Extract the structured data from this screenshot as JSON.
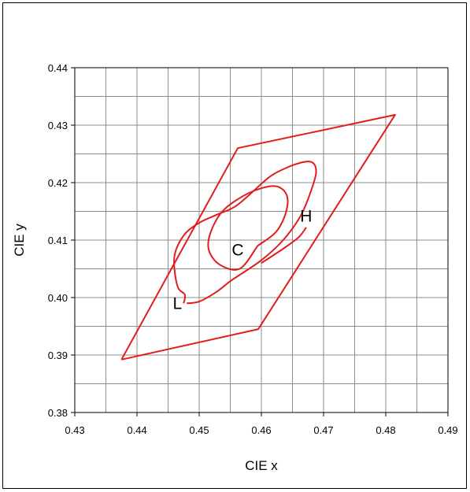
{
  "chart_data": {
    "type": "line",
    "title": "",
    "xlabel": "CIE x",
    "ylabel": "CIE y",
    "xlim": [
      0.43,
      0.49
    ],
    "ylim": [
      0.38,
      0.44
    ],
    "xticks": [
      "0.43",
      "0.44",
      "0.45",
      "0.46",
      "0.47",
      "0.48",
      "0.49"
    ],
    "yticks": [
      "0.38",
      "0.39",
      "0.40",
      "0.41",
      "0.42",
      "0.43",
      "0.44"
    ],
    "grid": true,
    "minor_grid_step": 0.005,
    "line_color": "#e31b1b",
    "series": [
      {
        "shape": "quadrilateral",
        "points": [
          [
            0.4375,
            0.3892
          ],
          [
            0.4562,
            0.426
          ],
          [
            0.4815,
            0.4318
          ],
          [
            0.4595,
            0.3945
          ],
          [
            0.4375,
            0.3892
          ]
        ]
      },
      {
        "shape": "ellipse",
        "center": [
          0.4579,
          0.4115
        ],
        "points": [
          [
            0.4594,
            0.409
          ],
          [
            0.4624,
            0.4115
          ],
          [
            0.464,
            0.415
          ],
          [
            0.464,
            0.418
          ],
          [
            0.462,
            0.4194
          ],
          [
            0.458,
            0.4182
          ],
          [
            0.454,
            0.4153
          ],
          [
            0.452,
            0.4118
          ],
          [
            0.4515,
            0.4085
          ],
          [
            0.4532,
            0.4058
          ],
          [
            0.4565,
            0.405
          ],
          [
            0.4594,
            0.409
          ]
        ]
      },
      {
        "shape": "spiral",
        "points": [
          [
            0.448,
            0.399
          ],
          [
            0.45,
            0.3993
          ],
          [
            0.4528,
            0.401
          ],
          [
            0.4552,
            0.403
          ],
          [
            0.46,
            0.4065
          ],
          [
            0.4635,
            0.41
          ],
          [
            0.4662,
            0.414
          ],
          [
            0.4678,
            0.418
          ],
          [
            0.4688,
            0.4218
          ],
          [
            0.468,
            0.4236
          ],
          [
            0.4655,
            0.4232
          ],
          [
            0.462,
            0.4215
          ],
          [
            0.46,
            0.4198
          ]
        ]
      },
      {
        "shape": "spiral",
        "points": [
          [
            0.46,
            0.4198
          ],
          [
            0.456,
            0.416
          ],
          [
            0.453,
            0.4145
          ],
          [
            0.45,
            0.413
          ],
          [
            0.4475,
            0.4108
          ],
          [
            0.446,
            0.407
          ],
          [
            0.4465,
            0.402
          ],
          [
            0.4477,
            0.4005
          ],
          [
            0.4475,
            0.399
          ]
        ]
      },
      {
        "shape": "tail",
        "points": [
          [
            0.46,
            0.406
          ],
          [
            0.4635,
            0.4085
          ],
          [
            0.466,
            0.4105
          ],
          [
            0.4672,
            0.4122
          ]
        ]
      }
    ],
    "annotations": [
      {
        "text": "C",
        "x": 0.4562,
        "y": 0.4073
      },
      {
        "text": "H",
        "x": 0.4672,
        "y": 0.4132
      },
      {
        "text": "L",
        "x": 0.4465,
        "y": 0.398
      }
    ]
  }
}
